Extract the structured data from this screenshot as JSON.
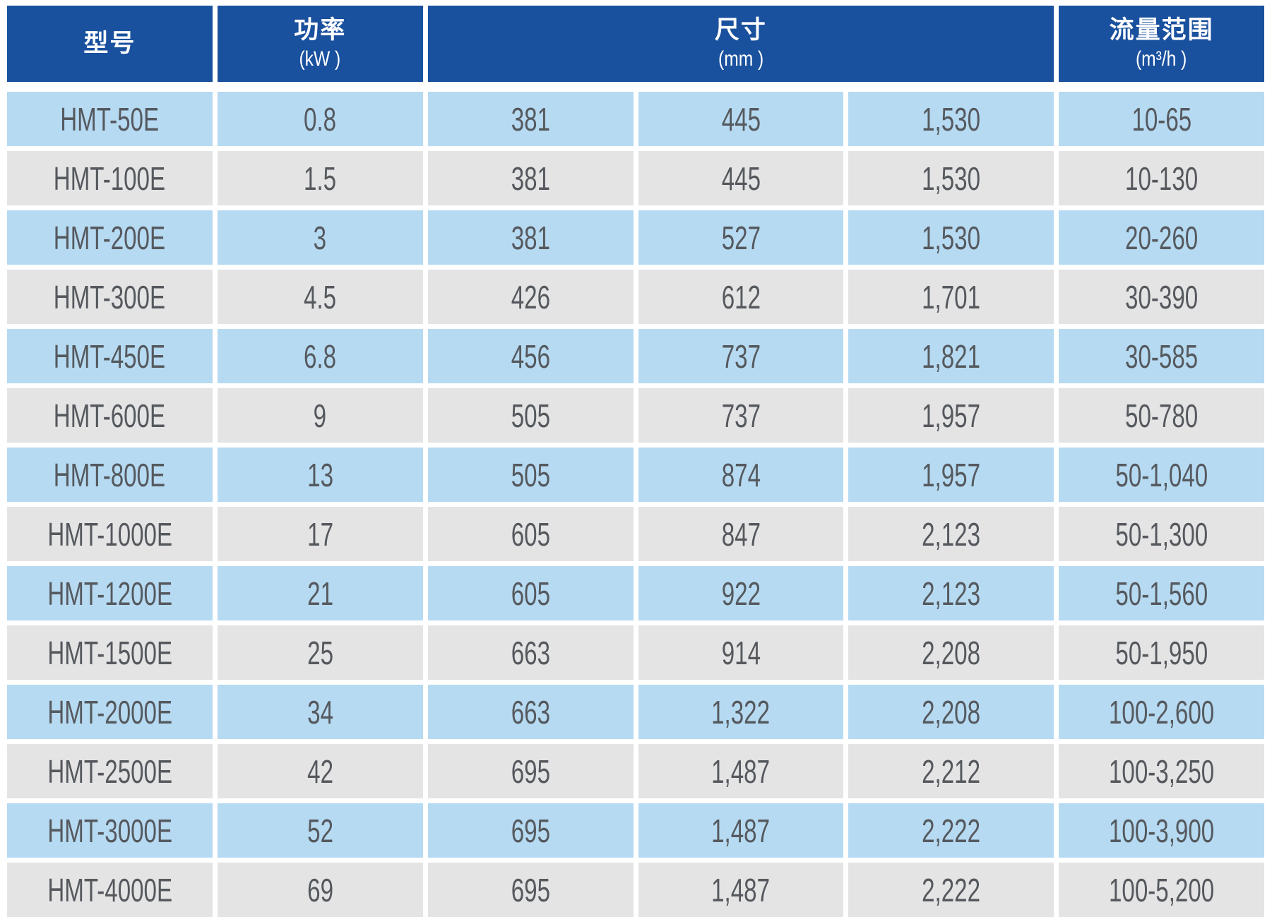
{
  "table": {
    "header": {
      "model": {
        "title": "型号"
      },
      "power": {
        "title": "功率",
        "unit": "(kW )"
      },
      "dimensions": {
        "title": "尺寸",
        "unit": "(mm )"
      },
      "flow": {
        "title": "流量范围",
        "unit": "(m³/h )"
      }
    },
    "rows": [
      [
        "HMT-50E",
        "0.8",
        "381",
        "445",
        "1,530",
        "10-65"
      ],
      [
        "HMT-100E",
        "1.5",
        "381",
        "445",
        "1,530",
        "10-130"
      ],
      [
        "HMT-200E",
        "3",
        "381",
        "527",
        "1,530",
        "20-260"
      ],
      [
        "HMT-300E",
        "4.5",
        "426",
        "612",
        "1,701",
        "30-390"
      ],
      [
        "HMT-450E",
        "6.8",
        "456",
        "737",
        "1,821",
        "30-585"
      ],
      [
        "HMT-600E",
        "9",
        "505",
        "737",
        "1,957",
        "50-780"
      ],
      [
        "HMT-800E",
        "13",
        "505",
        "874",
        "1,957",
        "50-1,040"
      ],
      [
        "HMT-1000E",
        "17",
        "605",
        "847",
        "2,123",
        "50-1,300"
      ],
      [
        "HMT-1200E",
        "21",
        "605",
        "922",
        "2,123",
        "50-1,560"
      ],
      [
        "HMT-1500E",
        "25",
        "663",
        "914",
        "2,208",
        "50-1,950"
      ],
      [
        "HMT-2000E",
        "34",
        "663",
        "1,322",
        "2,208",
        "100-2,600"
      ],
      [
        "HMT-2500E",
        "42",
        "695",
        "1,487",
        "2,212",
        "100-3,250"
      ],
      [
        "HMT-3000E",
        "52",
        "695",
        "1,487",
        "2,222",
        "100-3,900"
      ],
      [
        "HMT-4000E",
        "69",
        "695",
        "1,487",
        "2,222",
        "100-5,200"
      ]
    ],
    "colors": {
      "header_bg": "#1a519e",
      "header_text": "#ffffff",
      "row_blue": "#b6daf2",
      "row_gray": "#e4e4e5",
      "body_text": "#55595e"
    }
  }
}
